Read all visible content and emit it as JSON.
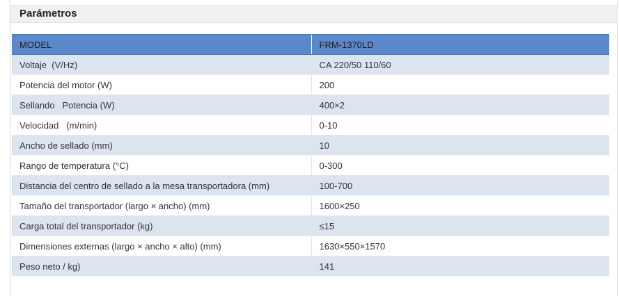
{
  "panel": {
    "title": "Parámetros"
  },
  "table": {
    "header": {
      "label": "MODEL",
      "value": "FRM-1370LD"
    },
    "rows": [
      {
        "label": "Voltaje  (V/Hz)",
        "value": "CA 220/50 110/60"
      },
      {
        "label": "Potencia del motor (W)",
        "value": "200"
      },
      {
        "label": "Sellando   Potencia (W)",
        "value": "400×2"
      },
      {
        "label": "Velocidad   (m/min)",
        "value": "0-10"
      },
      {
        "label": "Ancho de sellado (mm)",
        "value": "10"
      },
      {
        "label": "Rango de temperatura (°C)",
        "value": "0-300"
      },
      {
        "label": "Distancia del centro de sellado a la mesa transportadora (mm)",
        "value": "100-700"
      },
      {
        "label": "Tamaño del transportador (largo × ancho) (mm)",
        "value": "1600×250"
      },
      {
        "label": "Carga total del transportador (kg)",
        "value": "≤15"
      },
      {
        "label": "Dimensiones externas (largo × ancho × alto) (mm)",
        "value": "1630×550×1570"
      },
      {
        "label": "Peso neto / kg)",
        "value": "141"
      }
    ]
  },
  "colors": {
    "header_row_blue": "#5b88cb",
    "alt_row_blue": "#dce4f0",
    "panel_header_gray": "#f1f1f1",
    "body_text": "#333333"
  }
}
